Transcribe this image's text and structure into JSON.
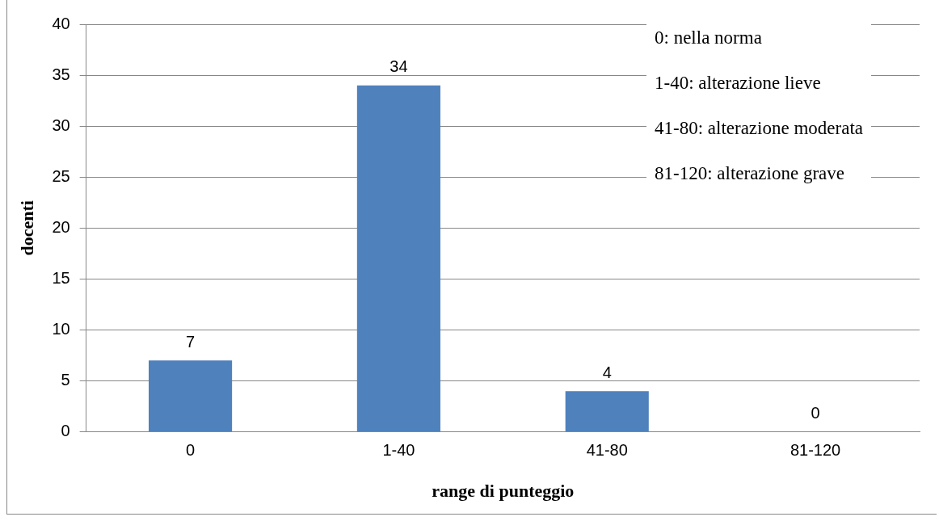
{
  "chart_data": {
    "type": "bar",
    "categories": [
      "0",
      "1-40",
      "41-80",
      "81-120"
    ],
    "values": [
      7,
      34,
      4,
      0
    ],
    "color": "#4f81bd",
    "xlabel": "range di punteggio",
    "ylabel": "docenti",
    "ylim": [
      0,
      40
    ],
    "yticks": [
      0,
      5,
      10,
      15,
      20,
      25,
      30,
      35,
      40
    ],
    "grid": "y",
    "data_labels": true,
    "legend": false,
    "annotations": [
      "0: nella norma",
      "1-40: alterazione lieve",
      "41-80: alterazione moderata",
      "81-120: alterazione grave"
    ]
  }
}
